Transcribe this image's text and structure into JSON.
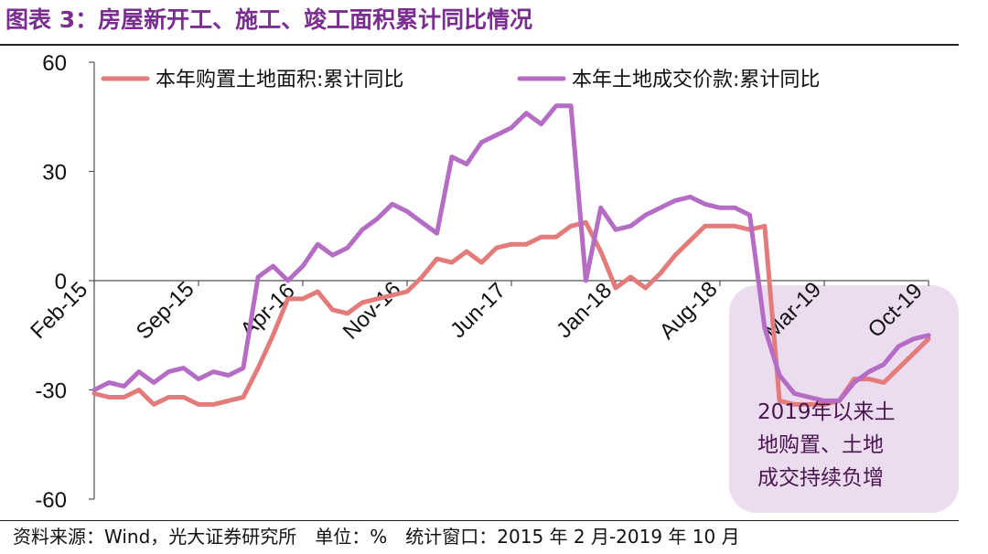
{
  "figure": {
    "title": "图表 3：房屋新开工、施工、竣工面积累计同比情况",
    "source": "资料来源：Wind，光大证券研究所　单位：%　统计窗口：2015 年 2 月-2019 年 10 月"
  },
  "chart_data": {
    "type": "line",
    "x_tick_labels": [
      "Feb-15",
      "Sep-15",
      "Apr-16",
      "Nov-16",
      "Jun-17",
      "Jan-18",
      "Aug-18",
      "Mar-19",
      "Oct-19"
    ],
    "y_tick_labels": [
      "60",
      "30",
      "0",
      "-30",
      "-60"
    ],
    "ylim": [
      -60,
      60
    ],
    "y_ticks": [
      60,
      30,
      0,
      -30,
      -60
    ],
    "series": [
      {
        "name": "本年购置土地面积:累计同比",
        "color": "#e37b7b",
        "x": [
          0,
          1,
          2,
          3,
          4,
          5,
          6,
          7,
          8,
          9,
          10,
          11,
          12,
          13,
          14,
          15,
          16,
          17,
          18,
          19,
          20,
          21,
          22,
          23,
          24,
          25,
          26,
          27,
          28,
          29,
          30,
          31,
          32,
          33,
          34,
          35,
          36,
          37,
          38,
          39,
          40,
          41,
          42,
          43,
          44,
          45,
          46,
          47,
          48,
          49,
          50,
          51,
          52,
          53,
          54,
          55,
          56
        ],
        "y": [
          -31,
          -32,
          -32,
          -30,
          -34,
          -32,
          -32,
          -34,
          -34,
          -33,
          -32,
          -24,
          -15,
          -5,
          -5,
          -3,
          -8,
          -9,
          -6,
          -5,
          -4,
          -3,
          1,
          6,
          5,
          8,
          5,
          9,
          10,
          10,
          12,
          12,
          15,
          16,
          8,
          -2,
          1,
          -2,
          2,
          7,
          11,
          15,
          15,
          15,
          14,
          15,
          -33,
          -34,
          -34,
          -34,
          -33,
          -27,
          -27,
          -28,
          -24,
          -20,
          -16
        ]
      },
      {
        "name": "本年土地成交价款:累计同比",
        "color": "#b46cc4",
        "x": [
          0,
          1,
          2,
          3,
          4,
          5,
          6,
          7,
          8,
          9,
          10,
          11,
          12,
          13,
          14,
          15,
          16,
          17,
          18,
          19,
          20,
          21,
          22,
          23,
          24,
          25,
          26,
          27,
          28,
          29,
          30,
          31,
          32,
          33,
          34,
          35,
          36,
          37,
          38,
          39,
          40,
          41,
          42,
          43,
          44,
          45,
          46,
          47,
          48,
          49,
          50,
          51,
          52,
          53,
          54,
          55,
          56
        ],
        "y": [
          -30,
          -28,
          -29,
          -25,
          -28,
          -25,
          -24,
          -27,
          -25,
          -26,
          -24,
          1,
          4,
          0,
          4,
          10,
          7,
          9,
          14,
          17,
          21,
          19,
          16,
          13,
          34,
          32,
          38,
          40,
          42,
          46,
          43,
          48,
          48,
          0,
          20,
          14,
          15,
          18,
          20,
          22,
          23,
          21,
          20,
          20,
          18,
          -13,
          -26,
          -31,
          -32,
          -33,
          -33,
          -28,
          -25,
          -23,
          -18,
          -16,
          -15
        ]
      }
    ],
    "annotation": {
      "lines": [
        "2019年以来土",
        "地购置、土地",
        "成交持续负增"
      ]
    }
  }
}
